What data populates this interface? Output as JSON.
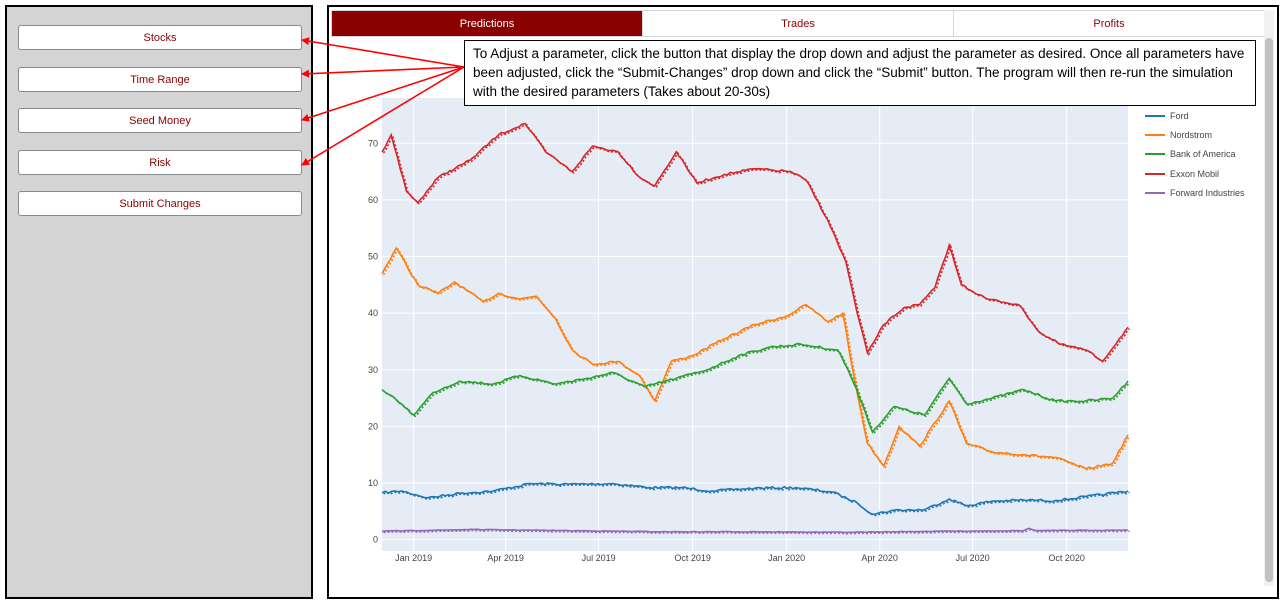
{
  "sidebar": {
    "buttons": [
      {
        "label": "Stocks"
      },
      {
        "label": "Time Range"
      },
      {
        "label": "Seed Money"
      },
      {
        "label": "Risk"
      },
      {
        "label": "Submit Changes"
      }
    ]
  },
  "main": {
    "tabs": [
      {
        "label": "Predictions",
        "active": true
      },
      {
        "label": "Trades",
        "active": false
      },
      {
        "label": "Profits",
        "active": false
      }
    ]
  },
  "callout": {
    "text": "To Adjust a parameter, click the button that display the drop down and adjust the parameter as desired.  Once all parameters have been adjusted, click the “Submit-Changes” drop down and click the “Submit” button.  The program will then re-run the simulation with the desired parameters (Takes about 20-30s)"
  },
  "colors": {
    "accent": "#8b0000",
    "arrow": "#ff0000",
    "plot_bg": "#e5ecf6"
  },
  "chart_data": {
    "type": "line",
    "title": "",
    "xlabel": "",
    "ylabel": "",
    "ylim": [
      -2,
      78
    ],
    "y_ticks": [
      0,
      10,
      20,
      30,
      40,
      50,
      60,
      70
    ],
    "x_range": [
      "2018-12-01",
      "2020-11-30"
    ],
    "x_ticks": [
      {
        "date": "2019-01-01",
        "label": "Jan 2019"
      },
      {
        "date": "2019-04-01",
        "label": "Apr 2019"
      },
      {
        "date": "2019-07-01",
        "label": "Jul 2019"
      },
      {
        "date": "2019-10-01",
        "label": "Oct 2019"
      },
      {
        "date": "2020-01-01",
        "label": "Jan 2020"
      },
      {
        "date": "2020-04-01",
        "label": "Apr 2020"
      },
      {
        "date": "2020-07-01",
        "label": "Jul 2020"
      },
      {
        "date": "2020-10-01",
        "label": "Oct 2020"
      }
    ],
    "grid": true,
    "legend_position": "right",
    "line_styles": {
      "actual": "solid",
      "predicted": "dotted"
    },
    "series": [
      {
        "name": "Ford",
        "color": "#1f77b4",
        "points": [
          [
            "2018-12-01",
            8.3
          ],
          [
            "2018-12-20",
            8.6
          ],
          [
            "2019-01-15",
            7.4
          ],
          [
            "2019-02-15",
            8.2
          ],
          [
            "2019-03-20",
            8.6
          ],
          [
            "2019-04-25",
            9.9
          ],
          [
            "2019-06-01",
            9.8
          ],
          [
            "2019-07-15",
            9.9
          ],
          [
            "2019-08-20",
            9.2
          ],
          [
            "2019-09-20",
            9.2
          ],
          [
            "2019-10-20",
            8.6
          ],
          [
            "2019-12-01",
            9.1
          ],
          [
            "2020-01-10",
            9.2
          ],
          [
            "2020-02-15",
            8.4
          ],
          [
            "2020-03-10",
            6.5
          ],
          [
            "2020-03-25",
            4.5
          ],
          [
            "2020-04-15",
            5.2
          ],
          [
            "2020-05-15",
            5.3
          ],
          [
            "2020-06-08",
            7.2
          ],
          [
            "2020-06-25",
            6.0
          ],
          [
            "2020-07-20",
            6.8
          ],
          [
            "2020-08-20",
            7.0
          ],
          [
            "2020-09-20",
            6.9
          ],
          [
            "2020-10-20",
            7.6
          ],
          [
            "2020-11-30",
            8.6
          ]
        ]
      },
      {
        "name": "Nordstrom",
        "color": "#ff7f0e",
        "points": [
          [
            "2018-12-01",
            47.0
          ],
          [
            "2018-12-15",
            51.5
          ],
          [
            "2019-01-05",
            45.0
          ],
          [
            "2019-01-25",
            43.5
          ],
          [
            "2019-02-10",
            45.5
          ],
          [
            "2019-03-10",
            42.0
          ],
          [
            "2019-03-25",
            43.5
          ],
          [
            "2019-04-15",
            42.5
          ],
          [
            "2019-05-01",
            43.0
          ],
          [
            "2019-05-20",
            39.0
          ],
          [
            "2019-06-05",
            33.5
          ],
          [
            "2019-06-25",
            31.0
          ],
          [
            "2019-07-20",
            31.5
          ],
          [
            "2019-08-10",
            29.0
          ],
          [
            "2019-08-25",
            24.5
          ],
          [
            "2019-09-10",
            31.5
          ],
          [
            "2019-10-01",
            32.5
          ],
          [
            "2019-11-01",
            35.5
          ],
          [
            "2019-12-01",
            38.0
          ],
          [
            "2020-01-01",
            39.5
          ],
          [
            "2020-01-20",
            41.5
          ],
          [
            "2020-02-10",
            38.5
          ],
          [
            "2020-02-25",
            40.0
          ],
          [
            "2020-03-05",
            30.5
          ],
          [
            "2020-03-20",
            17.0
          ],
          [
            "2020-04-05",
            13.0
          ],
          [
            "2020-04-20",
            20.0
          ],
          [
            "2020-05-10",
            16.5
          ],
          [
            "2020-06-08",
            24.5
          ],
          [
            "2020-06-25",
            17.0
          ],
          [
            "2020-07-20",
            15.5
          ],
          [
            "2020-08-20",
            15.0
          ],
          [
            "2020-09-20",
            14.5
          ],
          [
            "2020-10-20",
            12.5
          ],
          [
            "2020-11-15",
            13.5
          ],
          [
            "2020-11-30",
            18.5
          ]
        ]
      },
      {
        "name": "Bank of America",
        "color": "#2ca02c",
        "points": [
          [
            "2018-12-01",
            26.5
          ],
          [
            "2018-12-20",
            24.0
          ],
          [
            "2019-01-01",
            22.0
          ],
          [
            "2019-01-20",
            26.0
          ],
          [
            "2019-02-15",
            28.0
          ],
          [
            "2019-03-20",
            27.5
          ],
          [
            "2019-04-15",
            29.0
          ],
          [
            "2019-05-20",
            27.5
          ],
          [
            "2019-06-20",
            28.5
          ],
          [
            "2019-07-15",
            29.5
          ],
          [
            "2019-08-15",
            27.0
          ],
          [
            "2019-09-15",
            28.5
          ],
          [
            "2019-10-15",
            30.0
          ],
          [
            "2019-11-15",
            32.5
          ],
          [
            "2019-12-15",
            34.0
          ],
          [
            "2020-01-15",
            34.5
          ],
          [
            "2020-02-20",
            33.5
          ],
          [
            "2020-03-01",
            30.0
          ],
          [
            "2020-03-15",
            24.0
          ],
          [
            "2020-03-25",
            19.0
          ],
          [
            "2020-04-15",
            23.5
          ],
          [
            "2020-05-15",
            22.0
          ],
          [
            "2020-06-08",
            28.5
          ],
          [
            "2020-06-25",
            24.0
          ],
          [
            "2020-07-20",
            25.0
          ],
          [
            "2020-08-20",
            26.5
          ],
          [
            "2020-09-20",
            24.5
          ],
          [
            "2020-10-20",
            24.5
          ],
          [
            "2020-11-15",
            25.0
          ],
          [
            "2020-11-30",
            28.0
          ]
        ]
      },
      {
        "name": "Exxon Mobil",
        "color": "#d62728",
        "points": [
          [
            "2018-12-01",
            68.5
          ],
          [
            "2018-12-10",
            71.5
          ],
          [
            "2018-12-25",
            61.5
          ],
          [
            "2019-01-05",
            59.5
          ],
          [
            "2019-01-25",
            64.0
          ],
          [
            "2019-02-25",
            67.0
          ],
          [
            "2019-03-25",
            71.5
          ],
          [
            "2019-04-20",
            73.5
          ],
          [
            "2019-05-10",
            68.5
          ],
          [
            "2019-06-05",
            65.0
          ],
          [
            "2019-06-25",
            69.5
          ],
          [
            "2019-07-20",
            68.5
          ],
          [
            "2019-08-10",
            64.0
          ],
          [
            "2019-08-25",
            62.5
          ],
          [
            "2019-09-15",
            68.5
          ],
          [
            "2019-10-05",
            63.0
          ],
          [
            "2019-11-01",
            64.5
          ],
          [
            "2019-12-01",
            65.5
          ],
          [
            "2020-01-05",
            65.0
          ],
          [
            "2020-01-20",
            63.5
          ],
          [
            "2020-02-10",
            56.5
          ],
          [
            "2020-02-28",
            49.0
          ],
          [
            "2020-03-10",
            40.0
          ],
          [
            "2020-03-20",
            33.0
          ],
          [
            "2020-04-05",
            38.0
          ],
          [
            "2020-04-25",
            41.0
          ],
          [
            "2020-05-10",
            41.5
          ],
          [
            "2020-05-25",
            44.5
          ],
          [
            "2020-06-08",
            52.0
          ],
          [
            "2020-06-20",
            45.0
          ],
          [
            "2020-07-15",
            42.5
          ],
          [
            "2020-08-15",
            41.5
          ],
          [
            "2020-09-05",
            36.5
          ],
          [
            "2020-09-25",
            34.5
          ],
          [
            "2020-10-20",
            33.5
          ],
          [
            "2020-11-05",
            31.5
          ],
          [
            "2020-11-30",
            37.5
          ]
        ]
      },
      {
        "name": "Forward Industries",
        "color": "#9467bd",
        "points": [
          [
            "2018-12-01",
            1.5
          ],
          [
            "2019-03-01",
            1.8
          ],
          [
            "2019-06-01",
            1.6
          ],
          [
            "2019-09-01",
            1.4
          ],
          [
            "2019-12-01",
            1.4
          ],
          [
            "2020-03-01",
            1.3
          ],
          [
            "2020-06-01",
            1.5
          ],
          [
            "2020-08-20",
            1.6
          ],
          [
            "2020-08-25",
            2.0
          ],
          [
            "2020-09-01",
            1.6
          ],
          [
            "2020-11-30",
            1.7
          ]
        ]
      }
    ]
  }
}
